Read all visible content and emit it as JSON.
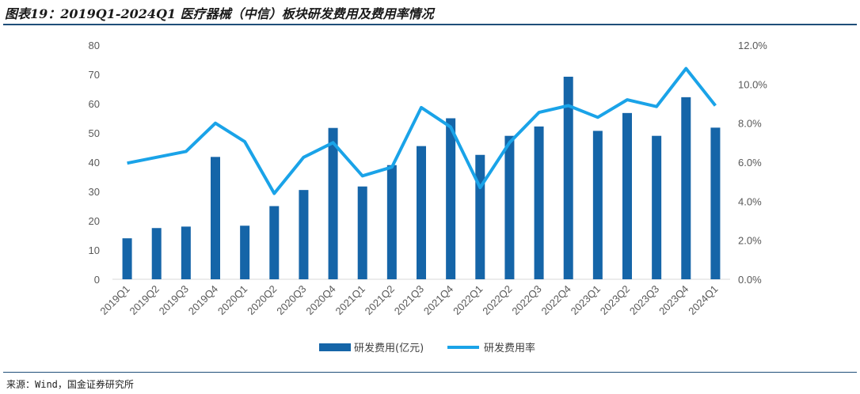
{
  "header": {
    "title": "图表19：2019Q1-2024Q1 医疗器械（中信）板块研发费用及费用率情况"
  },
  "footer": {
    "source": "来源：Wind，国金证券研究所"
  },
  "colors": {
    "bar": "#1565a8",
    "line": "#1aa3e8",
    "rule": "#1f4e79"
  },
  "chart_data": {
    "type": "bar+line",
    "categories": [
      "2019Q1",
      "2019Q2",
      "2019Q3",
      "2019Q4",
      "2020Q1",
      "2020Q2",
      "2020Q3",
      "2020Q4",
      "2021Q1",
      "2021Q2",
      "2021Q3",
      "2021Q4",
      "2022Q1",
      "2022Q2",
      "2022Q3",
      "2022Q4",
      "2023Q1",
      "2023Q2",
      "2023Q3",
      "2023Q4",
      "2024Q1"
    ],
    "series": [
      {
        "name": "研发费用(亿元)",
        "type": "bar",
        "axis": "left",
        "values": [
          14,
          17.5,
          18,
          41.8,
          18.3,
          25,
          30.5,
          51.7,
          31.7,
          39,
          45.5,
          55,
          42.5,
          49,
          52.2,
          69.2,
          50.7,
          56.8,
          49,
          62.2,
          51.8
        ]
      },
      {
        "name": "研发费用率",
        "type": "line",
        "axis": "right",
        "values": [
          5.95,
          6.25,
          6.55,
          8.0,
          7.05,
          4.4,
          6.25,
          7.0,
          5.3,
          5.75,
          8.8,
          7.8,
          4.7,
          7.0,
          8.55,
          8.9,
          8.3,
          9.2,
          8.85,
          10.8,
          8.9
        ]
      }
    ],
    "y_left": {
      "min": 0,
      "max": 80,
      "ticks": [
        "0",
        "10",
        "20",
        "30",
        "40",
        "50",
        "60",
        "70",
        "80"
      ]
    },
    "y_right": {
      "min": 0,
      "max": 12,
      "ticks": [
        "0.0%",
        "2.0%",
        "4.0%",
        "6.0%",
        "8.0%",
        "10.0%",
        "12.0%"
      ]
    },
    "legend": {
      "position": "bottom",
      "entries": [
        "研发费用(亿元)",
        "研发费用率"
      ]
    }
  }
}
